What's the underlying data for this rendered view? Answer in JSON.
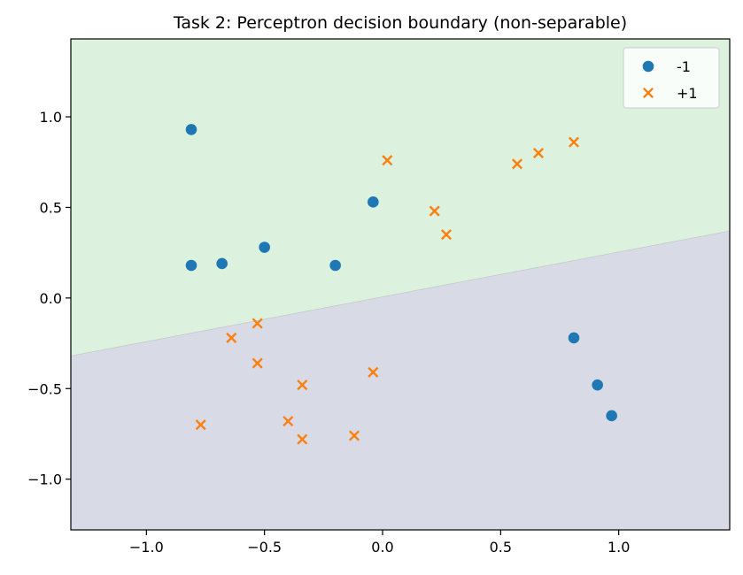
{
  "chart_data": {
    "type": "scatter",
    "title": "Task 2: Perceptron decision boundary (non-separable)",
    "xlabel": "",
    "ylabel": "",
    "xlim": [
      -1.32,
      1.47
    ],
    "ylim": [
      -1.28,
      1.43
    ],
    "xticks": [
      -1.0,
      -0.5,
      0.0,
      0.5,
      1.0
    ],
    "xtick_labels": [
      "−1.0",
      "−0.5",
      "0.0",
      "0.5",
      "1.0"
    ],
    "yticks": [
      -1.0,
      -0.5,
      0.0,
      0.5,
      1.0
    ],
    "ytick_labels": [
      "−1.0",
      "−0.5",
      "0.0",
      "0.5",
      "1.0"
    ],
    "grid": false,
    "legend_position": "top-right",
    "decision_boundary": {
      "line_points": [
        [
          -1.32,
          -0.32
        ],
        [
          1.47,
          0.37
        ]
      ],
      "region_above_color": "#dcf2de",
      "region_below_color": "#d8dbe6"
    },
    "series": [
      {
        "name": "-1",
        "marker": "circle",
        "color": "#1f77b4",
        "points": [
          [
            -0.81,
            0.93
          ],
          [
            -0.81,
            0.18
          ],
          [
            -0.68,
            0.19
          ],
          [
            -0.5,
            0.28
          ],
          [
            -0.2,
            0.18
          ],
          [
            -0.04,
            0.53
          ],
          [
            0.81,
            -0.22
          ],
          [
            0.91,
            -0.48
          ],
          [
            0.97,
            -0.65
          ]
        ]
      },
      {
        "name": "+1",
        "marker": "x",
        "color": "#ff7f0e",
        "points": [
          [
            0.02,
            0.76
          ],
          [
            0.22,
            0.48
          ],
          [
            0.27,
            0.35
          ],
          [
            0.57,
            0.74
          ],
          [
            0.66,
            0.8
          ],
          [
            0.81,
            0.86
          ],
          [
            -0.64,
            -0.22
          ],
          [
            -0.53,
            -0.14
          ],
          [
            -0.53,
            -0.36
          ],
          [
            -0.34,
            -0.48
          ],
          [
            -0.04,
            -0.41
          ],
          [
            -0.77,
            -0.7
          ],
          [
            -0.4,
            -0.68
          ],
          [
            -0.34,
            -0.78
          ],
          [
            -0.12,
            -0.76
          ]
        ]
      }
    ]
  }
}
